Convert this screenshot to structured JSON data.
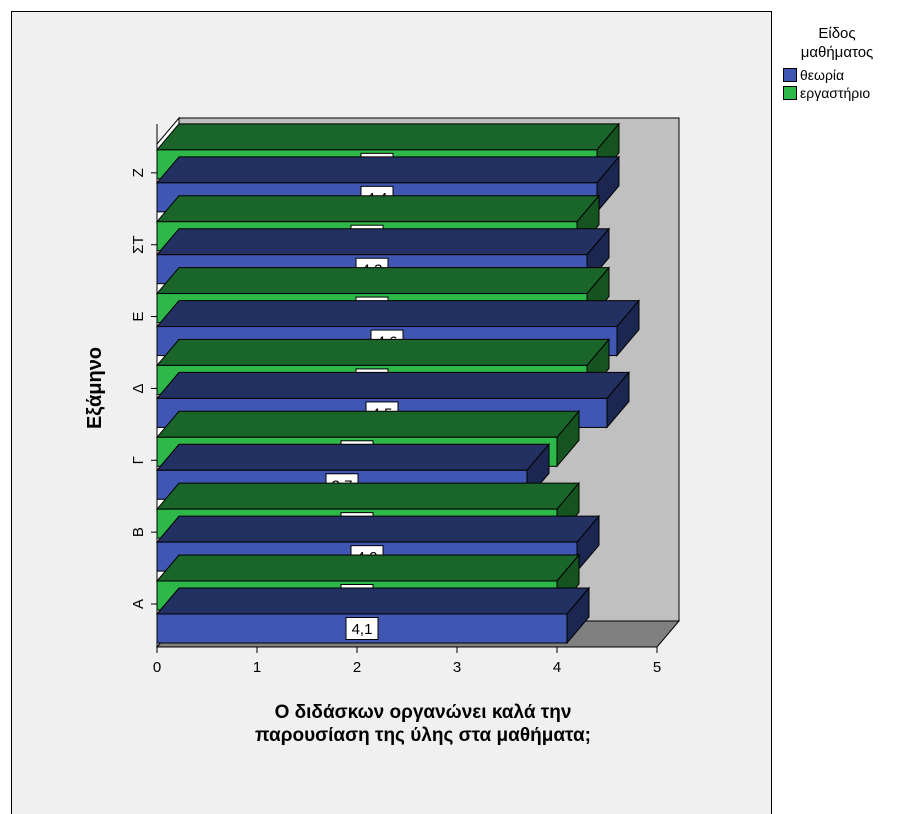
{
  "chart_data": {
    "type": "bar",
    "orientation": "horizontal",
    "style": "3d",
    "title": "",
    "xlabel": "Ο διδάσκων οργανώνει καλά την παρουσίαση της ύλης στα μαθήματα;",
    "xlabel_lines": [
      "Ο διδάσκων οργανώνει καλά την",
      "παρουσίαση της ύλης στα μαθήματα;"
    ],
    "ylabel": "Εξάμηνο",
    "xlim": [
      0,
      5
    ],
    "x_ticks": [
      "0",
      "1",
      "2",
      "3",
      "4",
      "5"
    ],
    "categories": [
      "Α",
      "Β",
      "Γ",
      "Δ",
      "Ε",
      "ΣΤ",
      "Ζ"
    ],
    "legend_title": "Είδος μαθήματος",
    "legend_title_lines": [
      "Είδος",
      "μαθήματος"
    ],
    "legend_position": "right",
    "grid": false,
    "series": [
      {
        "name": "θεωρία",
        "values": [
          4.1,
          4.2,
          3.7,
          4.5,
          4.6,
          4.3,
          4.4
        ],
        "labels": [
          "4,1",
          "4,2",
          "3,7",
          "4,5",
          "4,6",
          "4,3",
          "4,4"
        ],
        "color": "#3f57b3"
      },
      {
        "name": "εργαστήριο",
        "values": [
          4.0,
          4.0,
          4.0,
          4.3,
          4.3,
          4.2,
          4.4
        ],
        "labels": [
          "4,0",
          "4,0",
          "4,0",
          "4,3",
          "4,3",
          "4,2",
          "4,4"
        ],
        "color": "#2fb84a"
      }
    ],
    "colors": {
      "wall": "#c0c0c0",
      "floor": "#808080",
      "chart_background": "#f0f0f0"
    }
  }
}
